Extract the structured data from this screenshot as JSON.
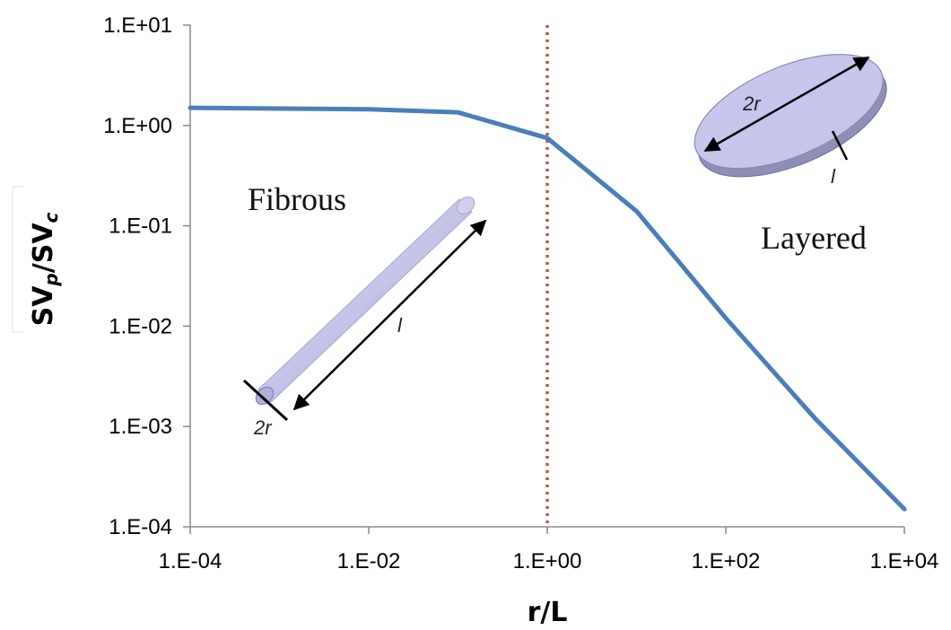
{
  "chart_data": {
    "type": "line",
    "xscale": "log",
    "yscale": "log",
    "xlim": [
      0.0001,
      10000
    ],
    "ylim": [
      0.0001,
      10
    ],
    "xticks": [
      "1.E-04",
      "1.E-02",
      "1.E+00",
      "1.E+02",
      "1.E+04"
    ],
    "yticks": [
      "1.E+01",
      "1.E+00",
      "1.E-01",
      "1.E-02",
      "1.E-03",
      "1.E-04"
    ],
    "xlabel": "r/L",
    "ylabel": {
      "base": "SV",
      "sub1": "p",
      "mid": "/SV",
      "sub2": "c"
    },
    "grid": false,
    "series": [
      {
        "color": "#4a7ebb",
        "points": [
          {
            "x": 0.0001,
            "y": 1.5
          },
          {
            "x": 0.01,
            "y": 1.45
          },
          {
            "x": 0.1,
            "y": 1.35
          },
          {
            "x": 1,
            "y": 0.75
          },
          {
            "x": 10,
            "y": 0.14
          },
          {
            "x": 100,
            "y": 0.012
          },
          {
            "x": 1000,
            "y": 0.0012
          },
          {
            "x": 10000,
            "y": 0.00015
          }
        ]
      }
    ],
    "reference_line": {
      "x": 1,
      "color": "#c0504d",
      "style": "dotted"
    },
    "annotations": {
      "fibrous": "Fibrous",
      "layered": "Layered"
    },
    "illustrations": {
      "rod": {
        "length_label": "l",
        "diameter_label": "2r",
        "color": "#c4c4ea"
      },
      "disc": {
        "diameter_label": "2r",
        "thickness_label": "l",
        "color": "#c4c4ea"
      }
    }
  }
}
